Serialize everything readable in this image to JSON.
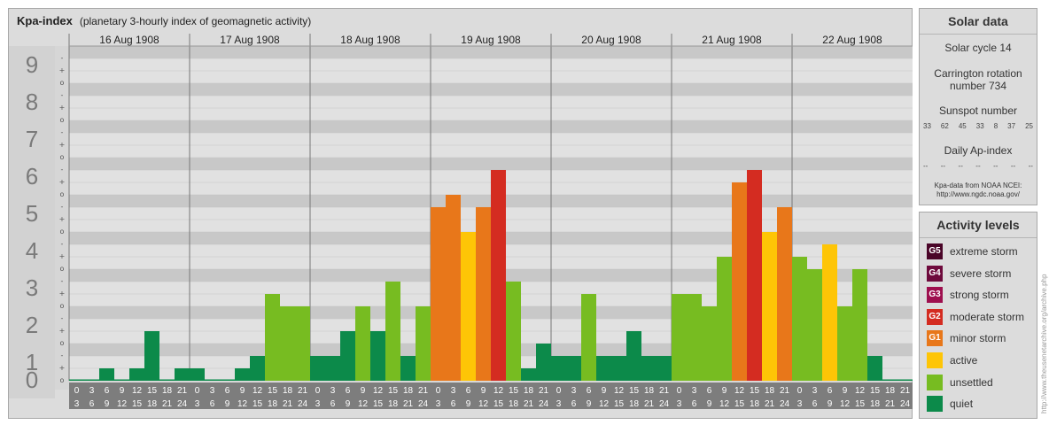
{
  "title": "Kpa-index",
  "subtitle": "(planetary 3-hourly index of geomagnetic activity)",
  "chart_data": {
    "type": "bar",
    "ylim": [
      0,
      9
    ],
    "y_ticks": [
      "0",
      "1",
      "2",
      "3",
      "4",
      "5",
      "6",
      "7",
      "8",
      "9"
    ],
    "minor_ticks": [
      "-",
      "o",
      "+"
    ],
    "days": [
      "16 Aug 1908",
      "17 Aug 1908",
      "18 Aug 1908",
      "19 Aug 1908",
      "20 Aug 1908",
      "21 Aug 1908",
      "22 Aug 1908"
    ],
    "interval_start": [
      "0",
      "3",
      "6",
      "9",
      "12",
      "15",
      "18",
      "21"
    ],
    "interval_end": [
      "3",
      "6",
      "9",
      "12",
      "15",
      "18",
      "21",
      "24"
    ],
    "values": [
      0,
      0,
      0.333,
      0,
      0.333,
      1.333,
      0,
      0.333,
      0.333,
      0,
      0,
      0.333,
      0.667,
      2.333,
      2,
      2,
      0.667,
      0.667,
      1.333,
      2,
      1.333,
      2.667,
      0.667,
      2,
      4.667,
      5,
      4,
      4.667,
      5.667,
      2.667,
      0.333,
      1,
      0.667,
      0.667,
      2.333,
      0.667,
      0.667,
      1.333,
      0.667,
      0.667,
      2.333,
      2.333,
      2,
      3.333,
      5.333,
      5.667,
      4,
      4.667,
      3.333,
      3,
      3.667,
      2,
      3,
      0.667,
      0,
      0
    ],
    "colors": {
      "quiet": "#0c8a4a",
      "unsettled": "#77bc21",
      "active": "#fec506",
      "minor storm": "#e8771a",
      "moderate storm": "#d42c21",
      "strong storm": "#9e0f4e",
      "severe storm": "#6e0a3c",
      "extreme storm": "#4a0528"
    }
  },
  "solar": {
    "title": "Solar data",
    "cycle": "Solar cycle 14",
    "carrington_1": "Carrington rotation",
    "carrington_2": "number 734",
    "sunspot_label": "Sunspot number",
    "sunspots": [
      "33",
      "62",
      "45",
      "33",
      "8",
      "37",
      "25"
    ],
    "ap_label": "Daily Ap-index",
    "ap_values": [
      "--",
      "--",
      "--",
      "--",
      "--",
      "--",
      "--"
    ],
    "credit_1": "Kpa-data from NOAA NCEI:",
    "credit_2": "http://www.ngdc.noaa.gov/"
  },
  "levels": {
    "title": "Activity levels",
    "items": [
      {
        "badge": "G5",
        "label": "extreme storm",
        "color": "#4a0528"
      },
      {
        "badge": "G4",
        "label": "severe storm",
        "color": "#6e0a3c"
      },
      {
        "badge": "G3",
        "label": "strong storm",
        "color": "#9e0f4e"
      },
      {
        "badge": "G2",
        "label": "moderate storm",
        "color": "#d42c21"
      },
      {
        "badge": "G1",
        "label": "minor storm",
        "color": "#e8771a"
      },
      {
        "badge": "",
        "label": "active",
        "color": "#fec506"
      },
      {
        "badge": "",
        "label": "unsettled",
        "color": "#77bc21"
      },
      {
        "badge": "",
        "label": "quiet",
        "color": "#0c8a4a"
      }
    ]
  },
  "side_url": "http://www.theusenetarchive.org/archive.php"
}
